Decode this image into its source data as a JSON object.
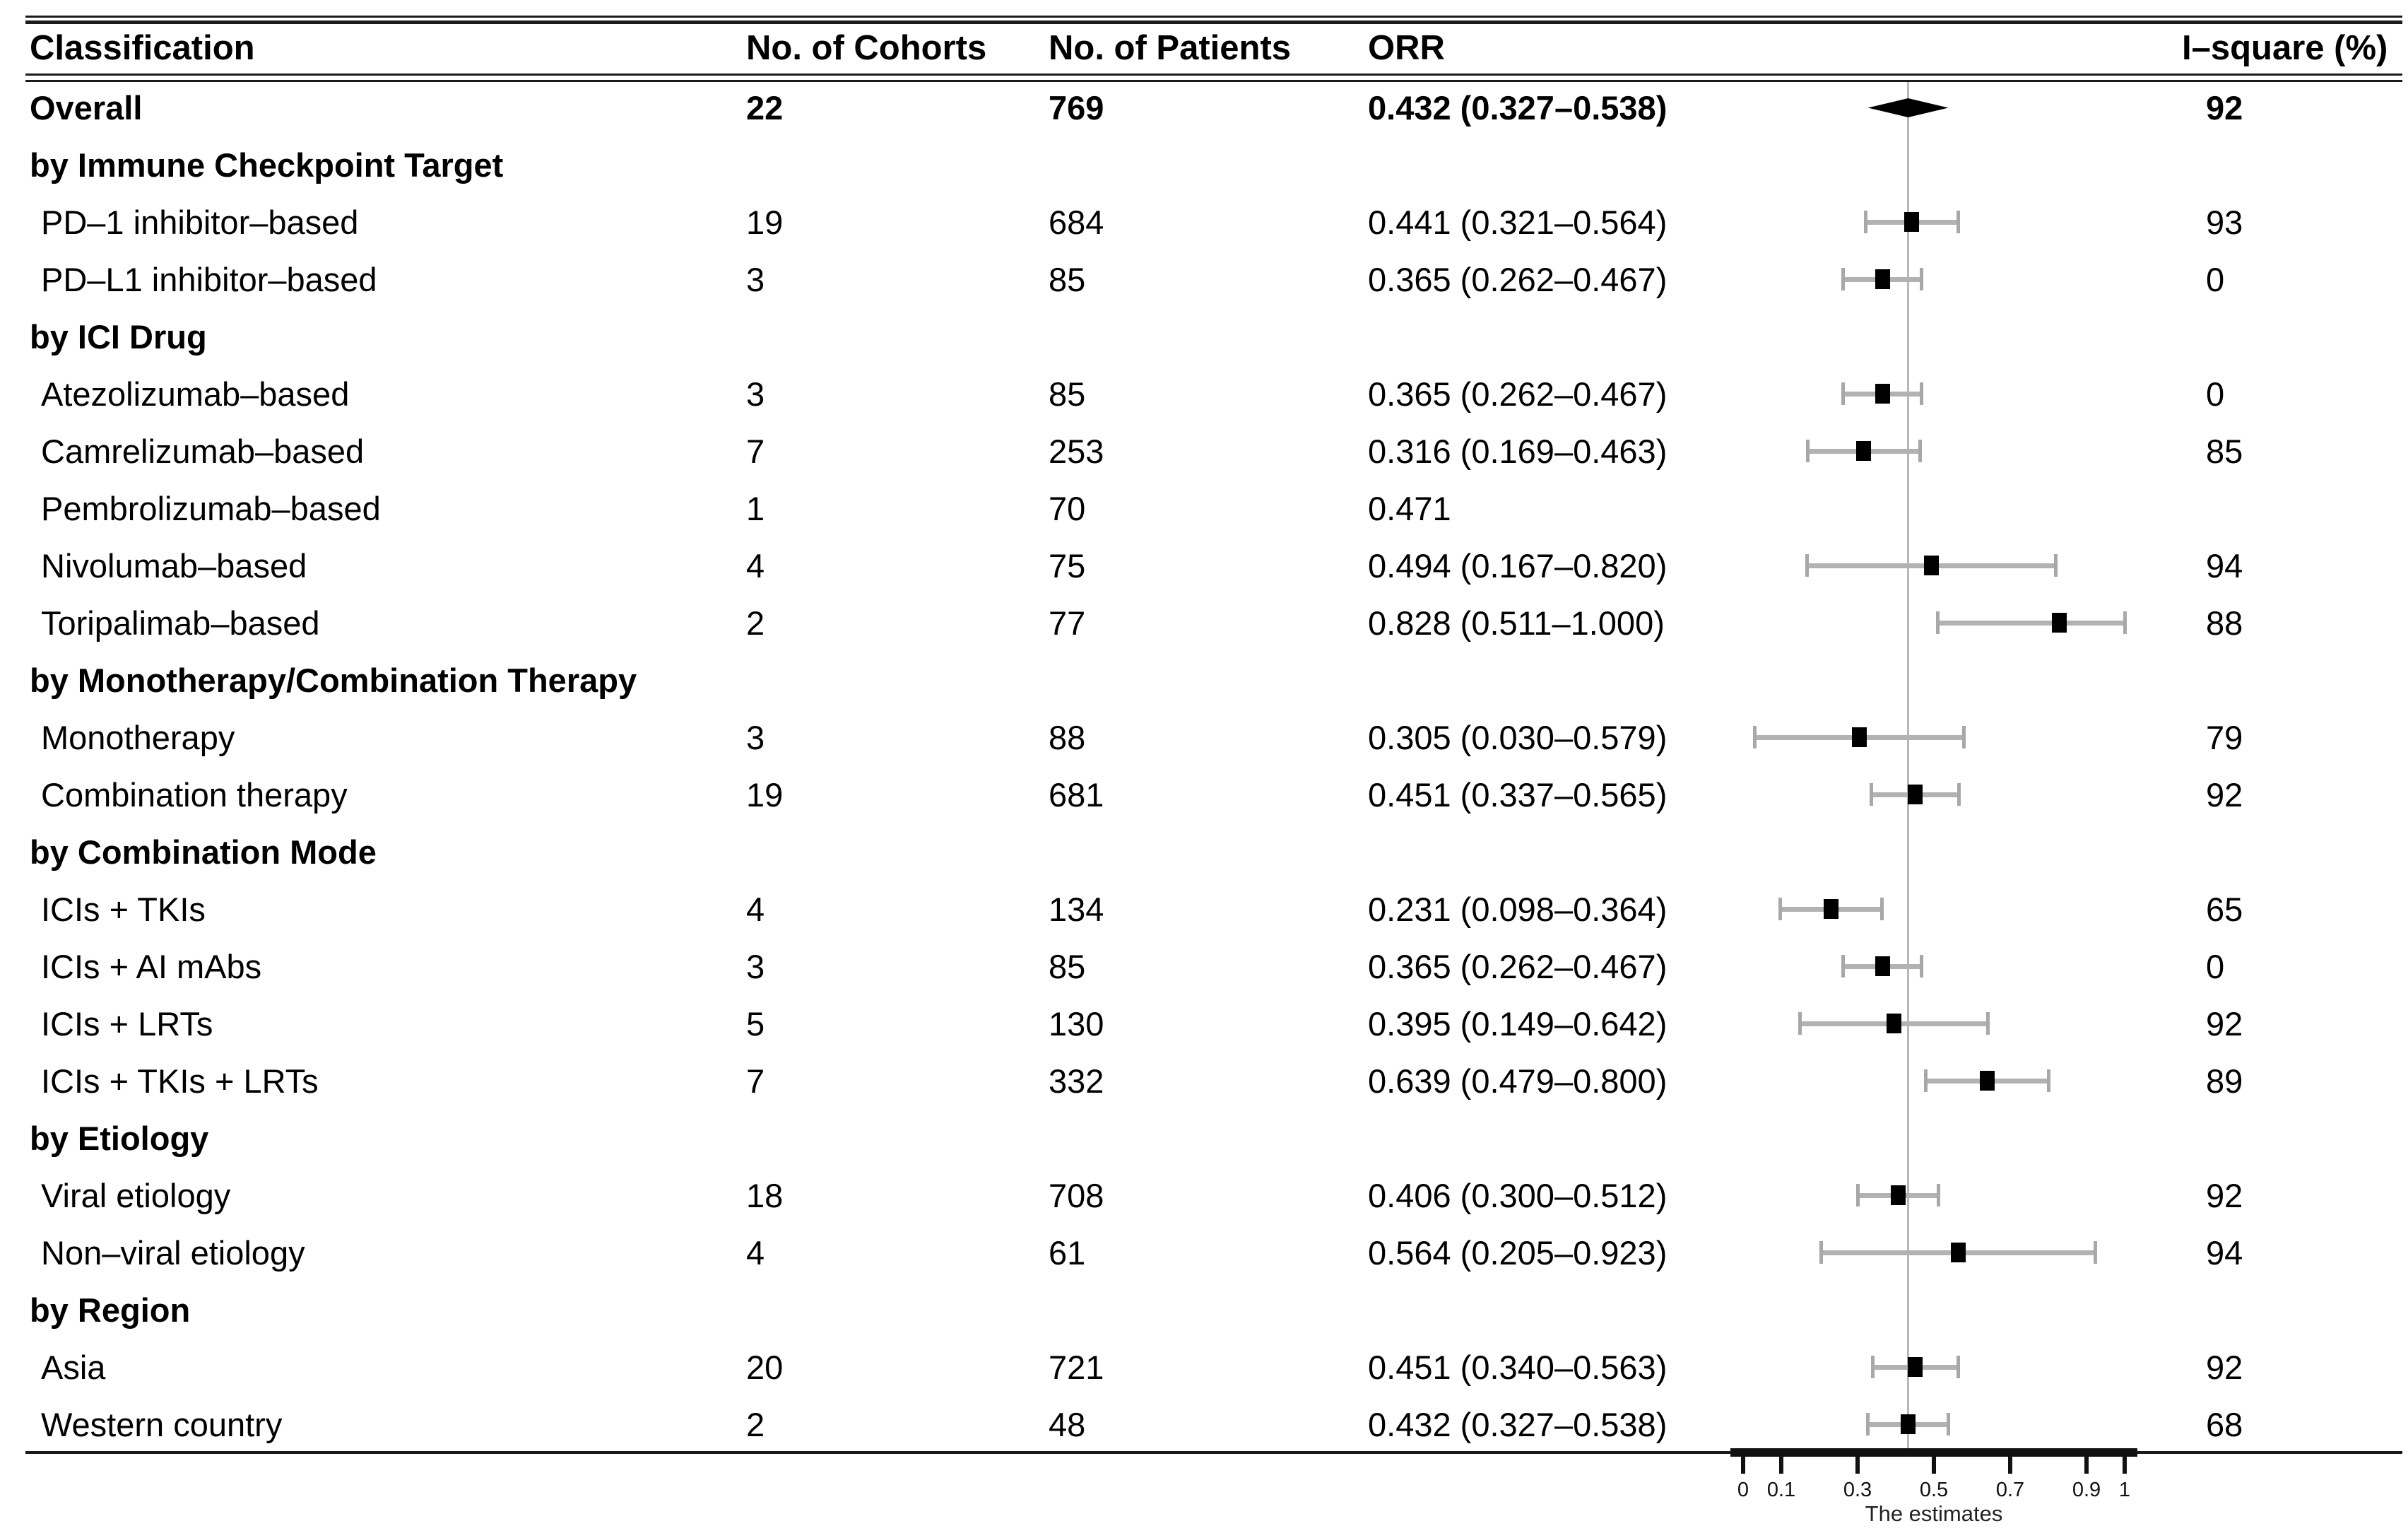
{
  "header": {
    "classification": "Classification",
    "cohorts": "No. of Cohorts",
    "patients": "No. of Patients",
    "orr": "ORR",
    "isquare": "I–square (%)"
  },
  "chart_data": {
    "type": "forest",
    "xlabel": "The estimates",
    "xlim": [
      0,
      1
    ],
    "reference_line": 0.432,
    "grid": false,
    "xticks": [
      {
        "v": 0,
        "label": "0"
      },
      {
        "v": 0.1,
        "label": "0.1"
      },
      {
        "v": 0.3,
        "label": "0.3"
      },
      {
        "v": 0.5,
        "label": "0.5"
      },
      {
        "v": 0.7,
        "label": "0.7"
      },
      {
        "v": 0.9,
        "label": "0.9"
      },
      {
        "v": 1,
        "label": "1"
      }
    ],
    "rows": [
      {
        "kind": "overall",
        "label": "Overall",
        "cohorts": "22",
        "patients": "769",
        "orr": "0.432 (0.327–0.538)",
        "est": 0.432,
        "lo": 0.327,
        "hi": 0.538,
        "isq": "92",
        "marker": "diamond"
      },
      {
        "kind": "section",
        "label": "by Immune Checkpoint Target"
      },
      {
        "kind": "data",
        "label": "PD–1 inhibitor–based",
        "cohorts": "19",
        "patients": "684",
        "orr": "0.441 (0.321–0.564)",
        "est": 0.441,
        "lo": 0.321,
        "hi": 0.564,
        "isq": "93",
        "marker": "square"
      },
      {
        "kind": "data",
        "label": "PD–L1 inhibitor–based",
        "cohorts": "3",
        "patients": "85",
        "orr": "0.365 (0.262–0.467)",
        "est": 0.365,
        "lo": 0.262,
        "hi": 0.467,
        "isq": "0",
        "marker": "square"
      },
      {
        "kind": "section",
        "label": "by ICI Drug"
      },
      {
        "kind": "data",
        "label": "Atezolizumab–based",
        "cohorts": "3",
        "patients": "85",
        "orr": "0.365 (0.262–0.467)",
        "est": 0.365,
        "lo": 0.262,
        "hi": 0.467,
        "isq": "0",
        "marker": "square"
      },
      {
        "kind": "data",
        "label": "Camrelizumab–based",
        "cohorts": "7",
        "patients": "253",
        "orr": "0.316 (0.169–0.463)",
        "est": 0.316,
        "lo": 0.169,
        "hi": 0.463,
        "isq": "85",
        "marker": "square"
      },
      {
        "kind": "data",
        "label": "Pembrolizumab–based",
        "cohorts": "1",
        "patients": "70",
        "orr": "0.471",
        "est": null,
        "lo": null,
        "hi": null,
        "isq": "",
        "marker": null
      },
      {
        "kind": "data",
        "label": "Nivolumab–based",
        "cohorts": "4",
        "patients": "75",
        "orr": "0.494 (0.167–0.820)",
        "est": 0.494,
        "lo": 0.167,
        "hi": 0.82,
        "isq": "94",
        "marker": "square"
      },
      {
        "kind": "data",
        "label": "Toripalimab–based",
        "cohorts": "2",
        "patients": "77",
        "orr": "0.828 (0.511–1.000)",
        "est": 0.828,
        "lo": 0.511,
        "hi": 1.0,
        "isq": "88",
        "marker": "square"
      },
      {
        "kind": "section",
        "label": "by Monotherapy/Combination Therapy"
      },
      {
        "kind": "data",
        "label": "Monotherapy",
        "cohorts": "3",
        "patients": "88",
        "orr": "0.305 (0.030–0.579)",
        "est": 0.305,
        "lo": 0.03,
        "hi": 0.579,
        "isq": "79",
        "marker": "square"
      },
      {
        "kind": "data",
        "label": "Combination therapy",
        "cohorts": "19",
        "patients": "681",
        "orr": "0.451 (0.337–0.565)",
        "est": 0.451,
        "lo": 0.337,
        "hi": 0.565,
        "isq": "92",
        "marker": "square"
      },
      {
        "kind": "section",
        "label": "by Combination Mode"
      },
      {
        "kind": "data",
        "label": "ICIs + TKIs",
        "cohorts": "4",
        "patients": "134",
        "orr": "0.231 (0.098–0.364)",
        "est": 0.231,
        "lo": 0.098,
        "hi": 0.364,
        "isq": "65",
        "marker": "square"
      },
      {
        "kind": "data",
        "label": "ICIs + AI mAbs",
        "cohorts": "3",
        "patients": "85",
        "orr": "0.365 (0.262–0.467)",
        "est": 0.365,
        "lo": 0.262,
        "hi": 0.467,
        "isq": "0",
        "marker": "square"
      },
      {
        "kind": "data",
        "label": "ICIs + LRTs",
        "cohorts": "5",
        "patients": "130",
        "orr": "0.395 (0.149–0.642)",
        "est": 0.395,
        "lo": 0.149,
        "hi": 0.642,
        "isq": "92",
        "marker": "square"
      },
      {
        "kind": "data",
        "label": "ICIs + TKIs + LRTs",
        "cohorts": "7",
        "patients": "332",
        "orr": "0.639 (0.479–0.800)",
        "est": 0.639,
        "lo": 0.479,
        "hi": 0.8,
        "isq": "89",
        "marker": "square"
      },
      {
        "kind": "section",
        "label": "by Etiology"
      },
      {
        "kind": "data",
        "label": "Viral etiology",
        "cohorts": "18",
        "patients": "708",
        "orr": "0.406 (0.300–0.512)",
        "est": 0.406,
        "lo": 0.3,
        "hi": 0.512,
        "isq": "92",
        "marker": "square"
      },
      {
        "kind": "data",
        "label": "Non–viral etiology",
        "cohorts": "4",
        "patients": "61",
        "orr": "0.564 (0.205–0.923)",
        "est": 0.564,
        "lo": 0.205,
        "hi": 0.923,
        "isq": "94",
        "marker": "square"
      },
      {
        "kind": "section",
        "label": "by Region"
      },
      {
        "kind": "data",
        "label": "Asia",
        "cohorts": "20",
        "patients": "721",
        "orr": "0.451 (0.340–0.563)",
        "est": 0.451,
        "lo": 0.34,
        "hi": 0.563,
        "isq": "92",
        "marker": "square"
      },
      {
        "kind": "data",
        "label": "Western country",
        "cohorts": "2",
        "patients": "48",
        "orr": "0.432 (0.327–0.538)",
        "est": 0.432,
        "lo": 0.327,
        "hi": 0.538,
        "isq": "68",
        "marker": "square"
      }
    ]
  }
}
